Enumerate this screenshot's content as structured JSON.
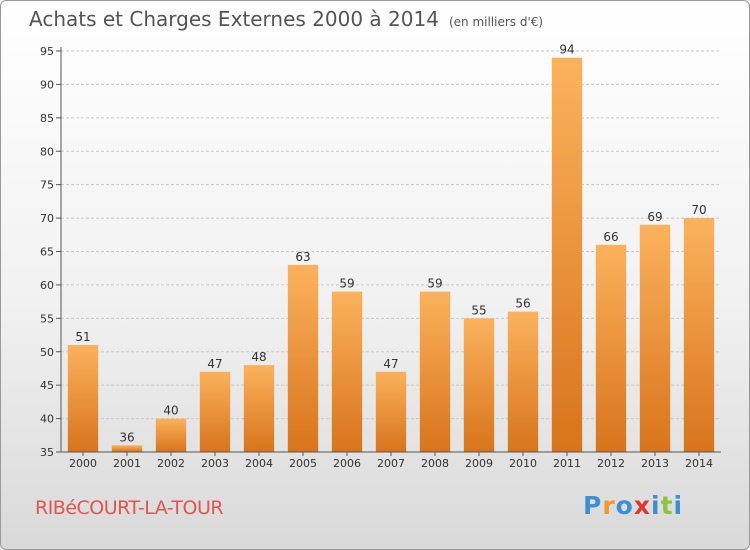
{
  "header": {
    "title": "Achats et Charges Externes 2000 à 2014",
    "unit": "(en milliers d'€)"
  },
  "footer": {
    "city": "RIBéCOURT-LA-TOUR",
    "logo": {
      "letters": [
        "P",
        "r",
        "o",
        "x",
        "i",
        "t",
        "i"
      ],
      "colors": [
        "#3a8fd6",
        "#f39a26",
        "#3a8fd6",
        "#e2362e",
        "#3a8fd6",
        "#8cc43c",
        "#3a8fd6"
      ]
    }
  },
  "colors": {
    "bar_light": "#fbb25c",
    "bar_dark": "#d8741c",
    "grid": "#c8c8c8",
    "axis": "#555555"
  },
  "chart_data": {
    "type": "bar",
    "title": "Achats et Charges Externes 2000 à 2014",
    "subtitle": "(en milliers d'€)",
    "categories": [
      "2000",
      "2001",
      "2002",
      "2003",
      "2004",
      "2005",
      "2006",
      "2007",
      "2008",
      "2009",
      "2010",
      "2011",
      "2012",
      "2013",
      "2014"
    ],
    "values": [
      51,
      36,
      40,
      47,
      48,
      63,
      59,
      47,
      59,
      55,
      56,
      94,
      66,
      69,
      70
    ],
    "ylim": [
      35,
      95
    ],
    "yticks": [
      35,
      40,
      45,
      50,
      55,
      60,
      65,
      70,
      75,
      80,
      85,
      90,
      95
    ],
    "grid": true,
    "data_labels": true
  }
}
